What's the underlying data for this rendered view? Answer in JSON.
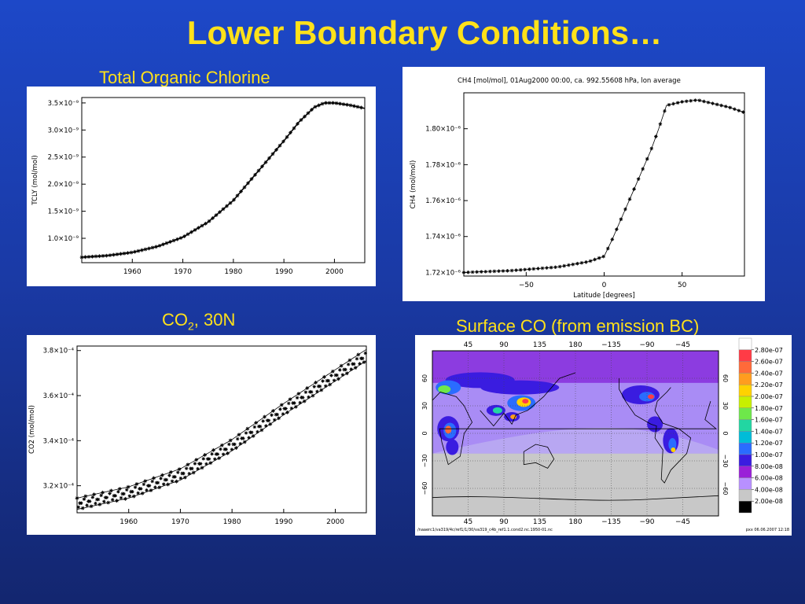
{
  "slide": {
    "title": "Lower Boundary Conditions…",
    "captions": {
      "tcl": "Total Organic Chlorine",
      "co2_main": "CO",
      "co2_sub": "2",
      "co2_rest": ", 30N",
      "co": "Surface CO (from emission BC)"
    }
  },
  "colors": {
    "background_top": "#1d48c8",
    "background_bottom": "#13266f",
    "title": "#ffe11a"
  },
  "chart_data": [
    {
      "id": "tcl",
      "type": "line",
      "title": "",
      "ylabel": "TCLY (mol/mol)",
      "xlabel": "",
      "xlim": [
        1950,
        2006
      ],
      "ylim": [
        5.5e-10,
        3.6e-09
      ],
      "xticks": [
        "1960",
        "1970",
        "1980",
        "1990",
        "2000"
      ],
      "yticks": [
        "3.5×10⁻⁹",
        "3.0×10⁻⁹",
        "2.5×10⁻⁹",
        "2.0×10⁻⁹",
        "1.5×10⁻⁹",
        "1.0×10⁻⁹"
      ],
      "x": [
        1950,
        1955,
        1960,
        1965,
        1970,
        1975,
        1980,
        1985,
        1990,
        1993,
        1996,
        1998,
        2000,
        2003,
        2006
      ],
      "values": [
        6.5e-10,
        6.8e-10,
        7.4e-10,
        8.5e-10,
        1.02e-09,
        1.3e-09,
        1.7e-09,
        2.25e-09,
        2.8e-09,
        3.15e-09,
        3.42e-09,
        3.5e-09,
        3.5e-09,
        3.46e-09,
        3.4e-09
      ]
    },
    {
      "id": "ch4",
      "type": "line",
      "title": "CH4 [mol/mol], 01Aug2000 00:00, ca. 992.55608 hPa, lon average",
      "ylabel": "CH4 (mol/mol)",
      "xlabel": "Latitude [degrees]",
      "xlim": [
        -90,
        90
      ],
      "ylim": [
        1.718e-06,
        1.82e-06
      ],
      "xticks": [
        "−50",
        "0",
        "50"
      ],
      "yticks": [
        "1.80×10⁻⁶",
        "1.78×10⁻⁶",
        "1.76×10⁻⁶",
        "1.74×10⁻⁶",
        "1.72×10⁻⁶"
      ],
      "x": [
        -90,
        -60,
        -30,
        -10,
        0,
        5,
        10,
        15,
        20,
        25,
        30,
        35,
        40,
        50,
        60,
        70,
        80,
        90
      ],
      "values": [
        1.72e-06,
        1.721e-06,
        1.723e-06,
        1.726e-06,
        1.729e-06,
        1.738e-06,
        1.748e-06,
        1.758e-06,
        1.768e-06,
        1.778e-06,
        1.788e-06,
        1.8e-06,
        1.813e-06,
        1.815e-06,
        1.816e-06,
        1.814e-06,
        1.812e-06,
        1.809e-06
      ]
    },
    {
      "id": "co2",
      "type": "line",
      "title": "",
      "ylabel": "CO2 (mol/mol)",
      "xlabel": "",
      "xlim": [
        1950,
        2006
      ],
      "ylim": [
        0.000308,
        0.000382
      ],
      "xticks": [
        "1960",
        "1970",
        "1980",
        "1990",
        "2000"
      ],
      "yticks": [
        "3.8×10⁻⁴",
        "3.6×10⁻⁴",
        "3.4×10⁻⁴",
        "3.2×10⁻⁴"
      ],
      "seasonal_amplitude": 2.5e-06,
      "x": [
        1950,
        1960,
        1970,
        1980,
        1990,
        2000,
        2006
      ],
      "values": [
        0.000312,
        0.000317,
        0.000325,
        0.000338,
        0.000354,
        0.000369,
        0.000378
      ]
    },
    {
      "id": "co_map",
      "type": "heatmap",
      "title": "",
      "top_lon_ticks": [
        "45",
        "90",
        "135",
        "180",
        "−135",
        "−90",
        "−45"
      ],
      "bottom_lon_ticks": [
        "45",
        "90",
        "135",
        "180",
        "−135",
        "−90",
        "−45"
      ],
      "left_lat_ticks": [
        "60",
        "30",
        "0",
        "−30",
        "−60"
      ],
      "right_lat_ticks": [
        "60",
        "30",
        "0",
        "−30",
        "−60"
      ],
      "legend": [
        "2.80e-07",
        "2.60e-07",
        "2.40e-07",
        "2.20e-07",
        "2.00e-07",
        "1.80e-07",
        "1.60e-07",
        "1.40e-07",
        "1.20e-07",
        "1.00e-07",
        "8.00e-08",
        "6.00e-08",
        "4.00e-08",
        "2.00e-08"
      ],
      "legend_colors": [
        "#ffffff",
        "#ff3b46",
        "#ff6a3a",
        "#ff9d1f",
        "#ffd200",
        "#c8f000",
        "#6ee84a",
        "#22d6a2",
        "#00bcd8",
        "#2a6cff",
        "#3a1ce0",
        "#9a20d8",
        "#b890ff",
        "#c8c8c8",
        "#000000"
      ],
      "footer_left": "/naaerc1/va319/4c/ref1/1/30/va319_c4b_ref1.1.cond2.nc.1950-01.nc",
      "footer_right": "pxx 06.06.2007 12:18"
    }
  ]
}
